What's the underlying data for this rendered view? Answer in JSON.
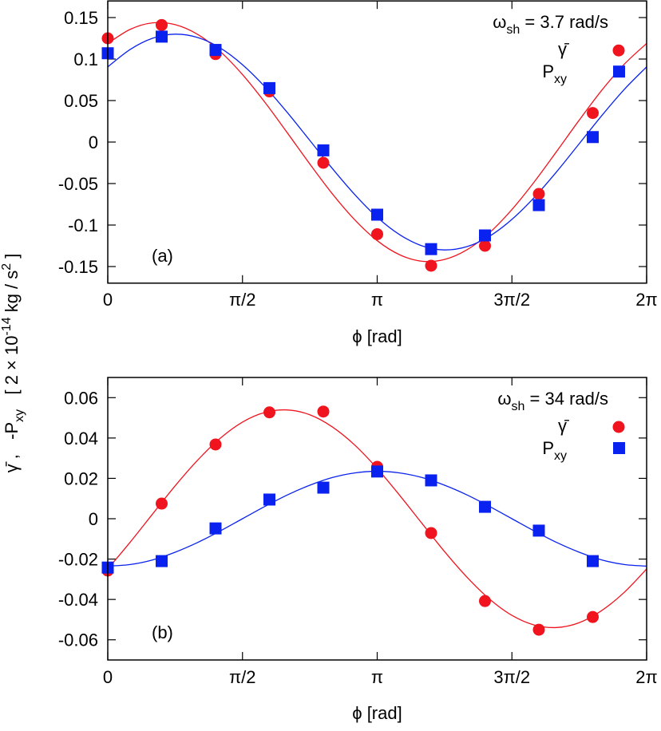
{
  "y_label": [
    {
      "text": "γ̄ ,   -P"
    },
    {
      "sub": "xy"
    },
    {
      "text": "   [ 2 × 10"
    },
    {
      "sup": "-14"
    },
    {
      "text": " kg / s"
    },
    {
      "sup": "2"
    },
    {
      "text": " ]"
    }
  ],
  "chart_data": [
    {
      "type": "scatter",
      "panel_label": "(a)",
      "annotation": [
        {
          "text": "ω"
        },
        {
          "sub": "sh"
        },
        {
          "text": " = 3.7 rad/s"
        }
      ],
      "x_label": "ϕ [rad]",
      "legend": "top-right",
      "xlim": [
        0,
        6.2832
      ],
      "xticks": [
        0,
        {
          "value": 1.5708,
          "label": "π/2"
        },
        {
          "value": 3.1416,
          "label": "π"
        },
        {
          "value": 4.7124,
          "label": "3π/2"
        },
        {
          "value": 6.2832,
          "label": "2π"
        }
      ],
      "ylim": [
        -0.17,
        0.17
      ],
      "yticks": [
        0.15,
        0.1,
        0.05,
        0,
        -0.05,
        -0.1,
        -0.15
      ],
      "x": [
        0,
        0.6283,
        1.2566,
        1.885,
        2.5133,
        3.1416,
        3.7699,
        4.3982,
        5.0265,
        5.6549
      ],
      "series": [
        {
          "name": [
            {
              "text": "γ̄"
            }
          ],
          "color": "#f0141e",
          "marker": "circle",
          "values": [
            0.125,
            0.141,
            0.106,
            0.061,
            -0.025,
            -0.111,
            -0.149,
            -0.125,
            -0.0625,
            0.035
          ]
        },
        {
          "name": [
            {
              "text": "P"
            },
            {
              "sub": "xy"
            }
          ],
          "color": "#0a22f0",
          "marker": "square",
          "values": [
            0.107,
            0.127,
            0.111,
            0.065,
            -0.01,
            -0.0875,
            -0.129,
            -0.1125,
            -0.076,
            0.006
          ]
        }
      ],
      "fits": [
        {
          "color": "#f0141e",
          "x": [
            0,
            0.2618,
            0.5236,
            0.7854,
            1.0472,
            1.309,
            1.5708,
            1.8326,
            2.0944,
            2.3562,
            2.618,
            2.8798,
            3.1416,
            3.4034,
            3.6652,
            3.927,
            4.1888,
            4.4506,
            4.7124,
            4.9742,
            5.236,
            5.4978,
            5.7596,
            6.0214,
            6.2832
          ],
          "values": [
            0.1188,
            0.1358,
            0.1436,
            0.1415,
            0.1298,
            0.1093,
            0.0813,
            0.0478,
            0.011,
            -0.0265,
            -0.0623,
            -0.0937,
            -0.1188,
            -0.1358,
            -0.1436,
            -0.1415,
            -0.1298,
            -0.1093,
            -0.0813,
            -0.0478,
            -0.011,
            0.0265,
            0.0623,
            0.0937,
            0.1188
          ]
        },
        {
          "color": "#0a22f0",
          "x": [
            0,
            0.2618,
            0.5236,
            0.7854,
            1.0472,
            1.309,
            1.5708,
            1.8326,
            2.0944,
            2.3562,
            2.618,
            2.8798,
            3.1416,
            3.4034,
            3.6652,
            3.927,
            4.1888,
            4.4506,
            4.7124,
            4.9742,
            5.236,
            5.4978,
            5.7596,
            6.0214,
            6.2832
          ],
          "values": [
            0.0906,
            0.1116,
            0.1251,
            0.13,
            0.126,
            0.1135,
            0.0932,
            0.0666,
            0.0355,
            0.0019,
            -0.0318,
            -0.0633,
            -0.0906,
            -0.1116,
            -0.1251,
            -0.13,
            -0.126,
            -0.1135,
            -0.0932,
            -0.0666,
            -0.0355,
            -0.0019,
            0.0318,
            0.0633,
            0.0906
          ]
        }
      ]
    },
    {
      "type": "scatter",
      "panel_label": "(b)",
      "annotation": [
        {
          "text": "ω"
        },
        {
          "sub": "sh"
        },
        {
          "text": " = 34 rad/s"
        }
      ],
      "x_label": "ϕ [rad]",
      "legend": "top-right",
      "xlim": [
        0,
        6.2832
      ],
      "xticks": [
        0,
        {
          "value": 1.5708,
          "label": "π/2"
        },
        {
          "value": 3.1416,
          "label": "π"
        },
        {
          "value": 4.7124,
          "label": "3π/2"
        },
        {
          "value": 6.2832,
          "label": "2π"
        }
      ],
      "ylim": [
        -0.07,
        0.07
      ],
      "yticks": [
        0.06,
        0.04,
        0.02,
        0,
        -0.02,
        -0.04,
        -0.06
      ],
      "x": [
        0,
        0.6283,
        1.2566,
        1.885,
        2.5133,
        3.1416,
        3.7699,
        4.3982,
        5.0265,
        5.6549
      ],
      "series": [
        {
          "name": [
            {
              "text": "γ̄"
            }
          ],
          "color": "#f0141e",
          "marker": "circle",
          "values": [
            -0.0257,
            0.0075,
            0.0368,
            0.0527,
            0.0531,
            0.0257,
            -0.0071,
            -0.0408,
            -0.055,
            -0.0487
          ]
        },
        {
          "name": [
            {
              "text": "P"
            },
            {
              "sub": "xy"
            }
          ],
          "color": "#0a22f0",
          "marker": "square",
          "values": [
            -0.0242,
            -0.021,
            -0.0048,
            0.0095,
            0.0154,
            0.0234,
            0.019,
            0.0059,
            -0.0059,
            -0.021
          ]
        }
      ],
      "fits": [
        {
          "color": "#f0141e",
          "x": [
            0,
            0.2618,
            0.5236,
            0.7854,
            1.0472,
            1.309,
            1.5708,
            1.8326,
            2.0944,
            2.3562,
            2.618,
            2.8798,
            3.1416,
            3.4034,
            3.6652,
            3.927,
            4.1888,
            4.4506,
            4.7124,
            4.9742,
            5.236,
            5.4978,
            5.7596,
            6.0214,
            6.2832
          ],
          "values": [
            -0.0249,
            -0.0116,
            0.0024,
            0.0163,
            0.029,
            0.0398,
            0.0479,
            0.0527,
            0.0539,
            0.0515,
            0.0455,
            0.0365,
            0.0249,
            0.0116,
            -0.0024,
            -0.0163,
            -0.029,
            -0.0398,
            -0.0479,
            -0.0527,
            -0.0539,
            -0.0515,
            -0.0455,
            -0.0365,
            -0.0249
          ]
        },
        {
          "color": "#0a22f0",
          "x": [
            0,
            0.2618,
            0.5236,
            0.7854,
            1.0472,
            1.309,
            1.5708,
            1.8326,
            2.0944,
            2.3562,
            2.618,
            2.8798,
            3.1416,
            3.4034,
            3.6652,
            3.927,
            4.1888,
            4.4506,
            4.7124,
            4.9742,
            5.236,
            5.4978,
            5.7596,
            6.0214,
            6.2832
          ],
          "values": [
            -0.0235,
            -0.0227,
            -0.0204,
            -0.0166,
            -0.0118,
            -0.0061,
            0,
            0.0061,
            0.0118,
            0.0166,
            0.0204,
            0.0227,
            0.0235,
            0.0227,
            0.0204,
            0.0166,
            0.0118,
            0.0061,
            0,
            -0.0061,
            -0.0118,
            -0.0166,
            -0.0204,
            -0.0227,
            -0.0235
          ]
        }
      ]
    }
  ]
}
